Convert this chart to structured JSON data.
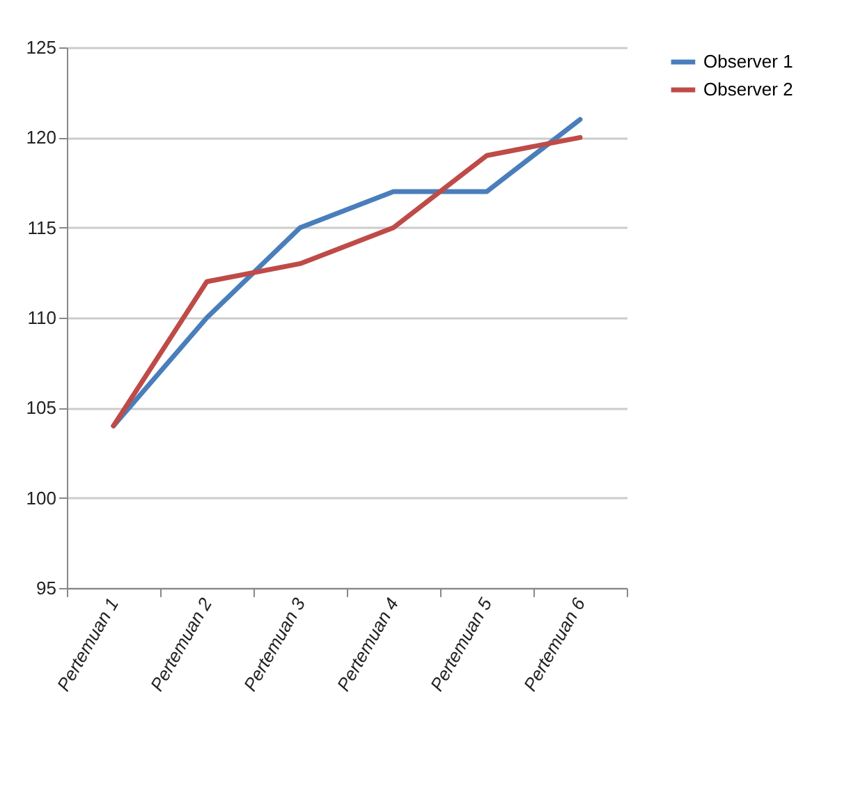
{
  "chart_data": {
    "type": "line",
    "categories": [
      "Pertemuan 1",
      "Pertemuan 2",
      "Pertemuan 3",
      "Pertemuan 4",
      "Pertemuan 5",
      "Pertemuan 6"
    ],
    "series": [
      {
        "name": "Observer 1",
        "color": "#4a7ebb",
        "values": [
          104,
          110,
          115,
          117,
          117,
          121
        ]
      },
      {
        "name": "Observer 2",
        "color": "#be4b48",
        "values": [
          104,
          112,
          113,
          115,
          119,
          120
        ]
      }
    ],
    "ylim": [
      95,
      125
    ],
    "yticks": [
      95,
      100,
      105,
      110,
      115,
      120,
      125
    ],
    "grid": "y",
    "legend": "right",
    "marker": "none",
    "line_style": "solid"
  }
}
